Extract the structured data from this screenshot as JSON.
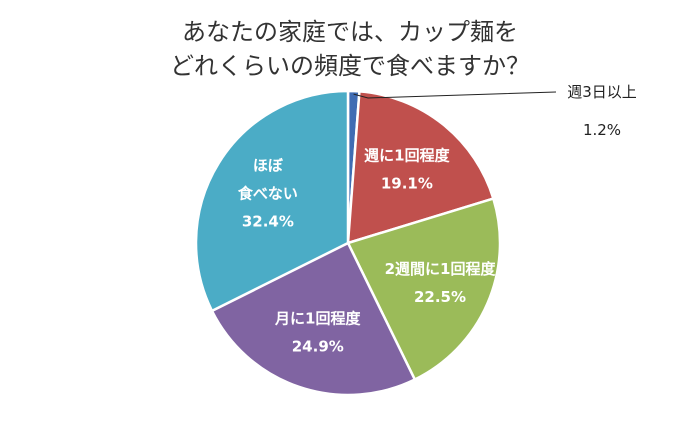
{
  "chart_data": {
    "type": "pie",
    "title_lines": [
      "あなたの家庭では、カップ麺を",
      "どれくらいの頻度で食べますか？"
    ],
    "slices": [
      {
        "label_lines": [
          "週3日以上"
        ],
        "value": 1.2,
        "value_label": "1.2%",
        "color": "#3F6CB3"
      },
      {
        "label_lines": [
          "週に1回程度"
        ],
        "value": 19.1,
        "value_label": "19.1%",
        "color": "#C0504D"
      },
      {
        "label_lines": [
          "2週間に1回程度"
        ],
        "value": 22.5,
        "value_label": "22.5%",
        "color": "#9BBB59"
      },
      {
        "label_lines": [
          "月に1回程度"
        ],
        "value": 24.9,
        "value_label": "24.9%",
        "color": "#8064A2"
      },
      {
        "label_lines": [
          "ほぼ",
          "食べない"
        ],
        "value": 32.4,
        "value_label": "32.4%",
        "color": "#4BACC6"
      }
    ]
  }
}
